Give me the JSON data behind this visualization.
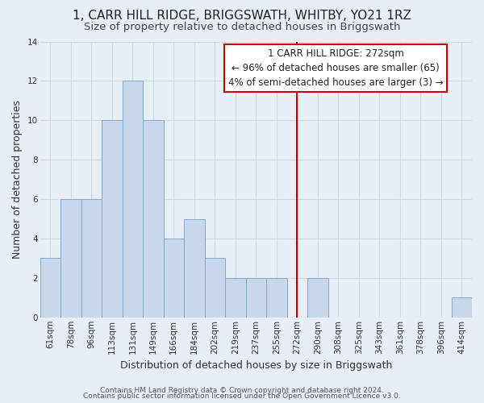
{
  "title": "1, CARR HILL RIDGE, BRIGGSWATH, WHITBY, YO21 1RZ",
  "subtitle": "Size of property relative to detached houses in Briggswath",
  "xlabel": "Distribution of detached houses by size in Briggswath",
  "ylabel": "Number of detached properties",
  "bin_labels": [
    "61sqm",
    "78sqm",
    "96sqm",
    "113sqm",
    "131sqm",
    "149sqm",
    "166sqm",
    "184sqm",
    "202sqm",
    "219sqm",
    "237sqm",
    "255sqm",
    "272sqm",
    "290sqm",
    "308sqm",
    "325sqm",
    "343sqm",
    "361sqm",
    "378sqm",
    "396sqm",
    "414sqm"
  ],
  "bar_counts": [
    3,
    6,
    6,
    10,
    12,
    10,
    4,
    5,
    3,
    2,
    2,
    2,
    0,
    2,
    0,
    0,
    0,
    0,
    0,
    0,
    1
  ],
  "bar_color": "#c8d8ea",
  "bar_edge_color": "#7fa8cc",
  "grid_color": "#d0dae4",
  "bg_color": "#e8eef5",
  "marker_index": 12,
  "marker_color": "#cc0000",
  "annotation_title": "1 CARR HILL RIDGE: 272sqm",
  "annotation_line1": "← 96% of detached houses are smaller (65)",
  "annotation_line2": "4% of semi-detached houses are larger (3) →",
  "annotation_box_color": "#cc0000",
  "annotation_bg": "#ffffff",
  "ylim": [
    0,
    14
  ],
  "yticks": [
    0,
    2,
    4,
    6,
    8,
    10,
    12,
    14
  ],
  "footer_line1": "Contains HM Land Registry data © Crown copyright and database right 2024.",
  "footer_line2": "Contains public sector information licensed under the Open Government Licence v3.0.",
  "title_fontsize": 11,
  "subtitle_fontsize": 9.5,
  "axis_label_fontsize": 9,
  "tick_fontsize": 7.5,
  "annotation_fontsize": 8.5,
  "footer_fontsize": 6.5
}
